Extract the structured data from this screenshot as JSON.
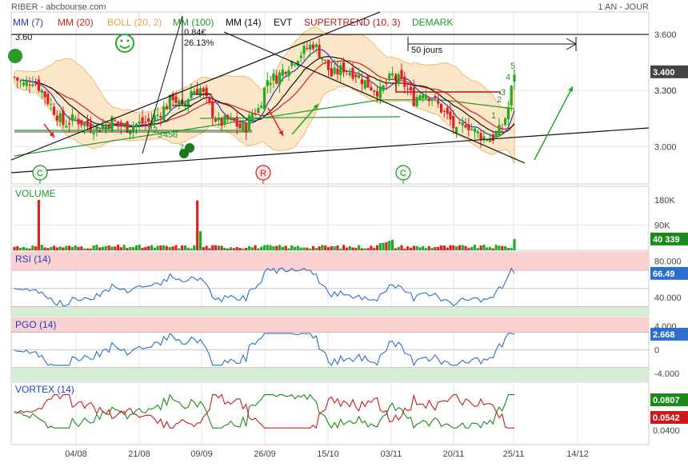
{
  "header": {
    "title": "RIBER - abcbourse.com",
    "period": "1 AN - JOUR"
  },
  "legend": [
    {
      "label": "MM (7)",
      "color": "#1f3fbf"
    },
    {
      "label": "MM (20)",
      "color": "#d42020"
    },
    {
      "label": "BOLL (20, 2)",
      "color": "#e8a24a"
    },
    {
      "label": "MM (100)",
      "color": "#1f9a2a"
    },
    {
      "label": "MM (14)",
      "color": "#111111"
    },
    {
      "label": "EVT",
      "color": "#111111"
    },
    {
      "label": "SUPERTREND (10, 3)",
      "color": "#b01818"
    },
    {
      "label": "DEMARK",
      "color": "#1f9a2a"
    }
  ],
  "colors": {
    "up": "#22aa22",
    "down": "#dd2222",
    "boll_fill": "#fbe6c8",
    "boll_line": "#f0b870",
    "overbought": "#fbd0d0",
    "oversold": "#d7ecd4",
    "rsi_line": "#2a6fc9",
    "pgo_line": "#2a6fc9",
    "vortex_plus": "#1a8a1a",
    "vortex_minus": "#cc1a1a",
    "grid": "#e4e4e4",
    "value_blue": "#2a6fc9",
    "value_green": "#1a8a1a",
    "value_red": "#cc1a1a"
  },
  "annotations": {
    "level_3_60": "3.60",
    "price_move": "0.84€",
    "percent_move": "26.13%",
    "fifty_days": "50 jours",
    "demark_up": [
      "1",
      "2",
      "3",
      "4",
      "5"
    ],
    "demark_setup": [
      "2",
      "3",
      "4",
      "5",
      "6",
      "7",
      "8",
      "9"
    ],
    "badges": [
      "C",
      "R",
      "C"
    ],
    "face_icon": "smiley-icon"
  },
  "chart_data": [
    {
      "type": "candlestick",
      "name": "price",
      "x_labels": [
        "04/08",
        "21/08",
        "09/09",
        "26/09",
        "15/10",
        "03/11",
        "20/11",
        "25/11",
        "14/12"
      ],
      "y_ticks": [
        "3.600",
        "3.300",
        "3.000"
      ],
      "ylim": [
        2.8,
        3.72
      ],
      "last_value": "3.400",
      "highlight_tick": "3.300",
      "description_lines": {
        "supertrend_level": 3.28,
        "resistance_level": 3.6
      }
    },
    {
      "type": "bar",
      "name": "volume",
      "title": "VOLUME",
      "y_ticks": [
        "180K",
        "90K",
        "0"
      ],
      "ylim": [
        0,
        200000
      ],
      "last_value": "40 339",
      "peak_values": [
        180000,
        178000,
        68000
      ]
    },
    {
      "type": "line",
      "name": "rsi",
      "title": "RSI (14)",
      "y_ticks": [
        "80.000",
        "40.000"
      ],
      "ylim": [
        20,
        90
      ],
      "last_value": "66.49",
      "overbought": 70,
      "oversold": 30
    },
    {
      "type": "line",
      "name": "pgo",
      "title": "PGO (14)",
      "y_ticks": [
        "4.000",
        "0",
        "-4.000"
      ],
      "ylim": [
        -5.2,
        5.5
      ],
      "last_value": "2.668",
      "overbought": 3,
      "oversold": -3
    },
    {
      "type": "line",
      "name": "vortex",
      "title": "VORTEX (14)",
      "y_ticks": [
        "0.0807",
        "0.0542",
        "0.0400"
      ],
      "ylim": [
        -0.2,
        1.3
      ],
      "last_values": [
        "0.0807",
        "0.0542"
      ]
    }
  ]
}
